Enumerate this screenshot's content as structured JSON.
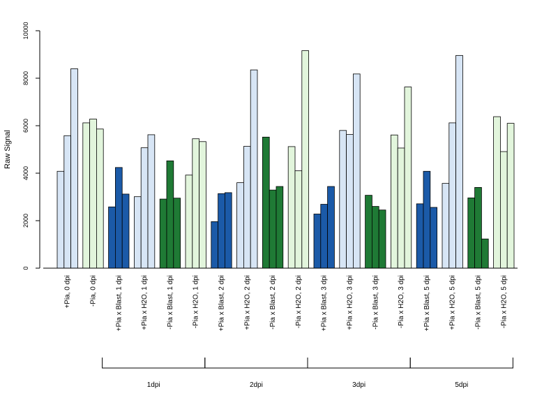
{
  "chart_data": {
    "type": "bar",
    "ylabel": "Raw Signal",
    "xlabel": "",
    "ylim": [
      0,
      10000
    ],
    "yticks": [
      0,
      2000,
      4000,
      6000,
      8000,
      10000
    ],
    "colors": {
      "light_blue": "#d7e5f5",
      "dark_blue": "#1b5aa8",
      "dark_green": "#1f7a35",
      "light_green": "#e2f5dc"
    },
    "categories": [
      {
        "label": "+Pia, 0 dpi",
        "color": "light_blue",
        "values": [
          4080,
          5580,
          8400
        ]
      },
      {
        "label": "-Pia, 0 dpi",
        "color": "light_green",
        "values": [
          6120,
          6280,
          5860
        ]
      },
      {
        "label": "+Pia x Blast, 1 dpi",
        "color": "dark_blue",
        "values": [
          2580,
          4240,
          3120
        ]
      },
      {
        "label": "+Pia x H2O, 1 dpi",
        "color": "light_blue",
        "values": [
          3010,
          5070,
          5620
        ]
      },
      {
        "label": "-Pia x Blast, 1 dpi",
        "color": "dark_green",
        "values": [
          2910,
          4520,
          2950
        ]
      },
      {
        "label": "-Pia x H2O, 1 dpi",
        "color": "light_green",
        "values": [
          3920,
          5450,
          5330
        ]
      },
      {
        "label": "+Pia x Blast, 2 dpi",
        "color": "dark_blue",
        "values": [
          1960,
          3140,
          3180
        ]
      },
      {
        "label": "+Pia x H2O, 2 dpi",
        "color": "light_blue",
        "values": [
          3600,
          5130,
          8350
        ]
      },
      {
        "label": "-Pia x Blast, 2 dpi",
        "color": "dark_green",
        "values": [
          5520,
          3290,
          3440
        ]
      },
      {
        "label": "-Pia x H2O, 2 dpi",
        "color": "light_green",
        "values": [
          5120,
          4100,
          9160
        ]
      },
      {
        "label": "+Pia x Blast, 3 dpi",
        "color": "dark_blue",
        "values": [
          2280,
          2690,
          3440
        ]
      },
      {
        "label": "+Pia x H2O, 3 dpi",
        "color": "light_blue",
        "values": [
          5800,
          5630,
          8180
        ]
      },
      {
        "label": "-Pia x Blast, 3 dpi",
        "color": "dark_green",
        "values": [
          3070,
          2600,
          2450
        ]
      },
      {
        "label": "-Pia x H2O, 3 dpi",
        "color": "light_green",
        "values": [
          5610,
          5060,
          7630
        ]
      },
      {
        "label": "+Pia x Blast, 5 dpi",
        "color": "dark_blue",
        "values": [
          2710,
          4080,
          2560
        ]
      },
      {
        "label": "+Pia x H2O, 5 dpi",
        "color": "light_blue",
        "values": [
          3570,
          6120,
          8960
        ]
      },
      {
        "label": "-Pia x Blast, 5 dpi",
        "color": "dark_green",
        "values": [
          2960,
          3400,
          1230
        ]
      },
      {
        "label": "-Pia x H2O, 5 dpi",
        "color": "light_green",
        "values": [
          6380,
          4910,
          6100
        ]
      }
    ],
    "groups": [
      {
        "label": "1dpi",
        "from": 2,
        "to": 5
      },
      {
        "label": "2dpi",
        "from": 6,
        "to": 9
      },
      {
        "label": "3dpi",
        "from": 10,
        "to": 13
      },
      {
        "label": "5dpi",
        "from": 14,
        "to": 17
      }
    ]
  }
}
